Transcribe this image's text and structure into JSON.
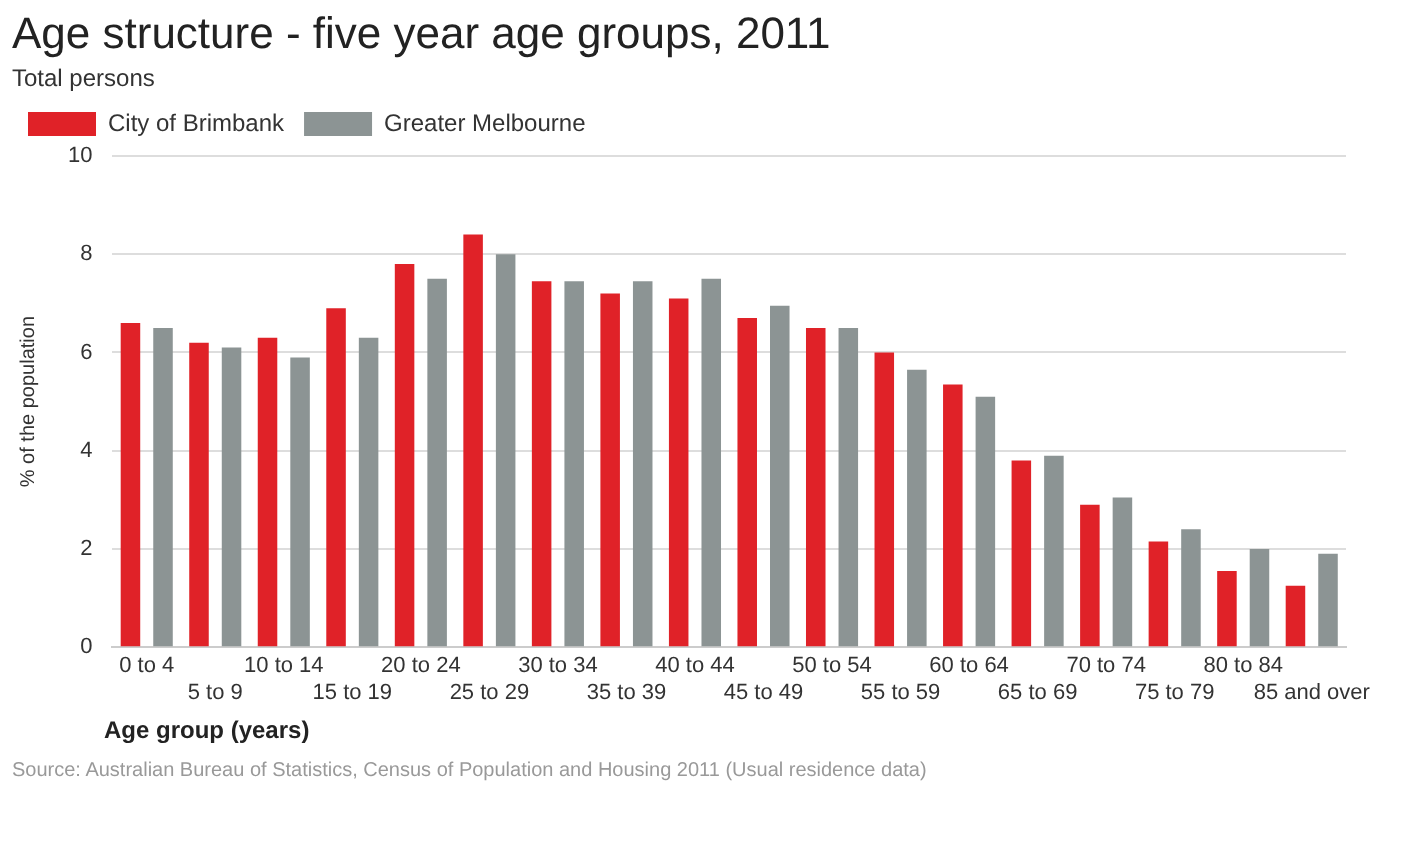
{
  "chart_data": {
    "type": "bar",
    "title": "Age structure - five year age groups, 2011",
    "subtitle": "Total persons",
    "xlabel": "Age group (years)",
    "ylabel": "% of the population",
    "categories": [
      "0 to 4",
      "5 to 9",
      "10 to 14",
      "15 to 19",
      "20 to 24",
      "25 to 29",
      "30 to 34",
      "35 to 39",
      "40 to 44",
      "45 to 49",
      "50 to 54",
      "55 to 59",
      "60 to 64",
      "65 to 69",
      "70 to 74",
      "75 to 79",
      "80 to 84",
      "85 and over"
    ],
    "series": [
      {
        "name": "City of Brimbank",
        "color": "#e02228",
        "values": [
          6.6,
          6.2,
          6.3,
          6.9,
          7.8,
          8.4,
          7.45,
          7.2,
          7.1,
          6.7,
          6.5,
          6.0,
          5.35,
          3.8,
          2.9,
          2.15,
          1.55,
          1.25
        ]
      },
      {
        "name": "Greater Melbourne",
        "color": "#8c9494",
        "values": [
          6.5,
          6.1,
          5.9,
          6.3,
          7.5,
          8.0,
          7.45,
          7.45,
          7.5,
          6.95,
          6.5,
          5.65,
          5.1,
          3.9,
          3.05,
          2.4,
          2.0,
          1.9
        ]
      }
    ],
    "ylim": [
      0,
      10
    ],
    "yticks": [
      0,
      2,
      4,
      6,
      8,
      10
    ],
    "grid": "y",
    "legend": "top left",
    "annotations": [
      "Source: Australian Bureau of Statistics, Census of Population and Housing 2011 (Usual residence data)"
    ]
  }
}
